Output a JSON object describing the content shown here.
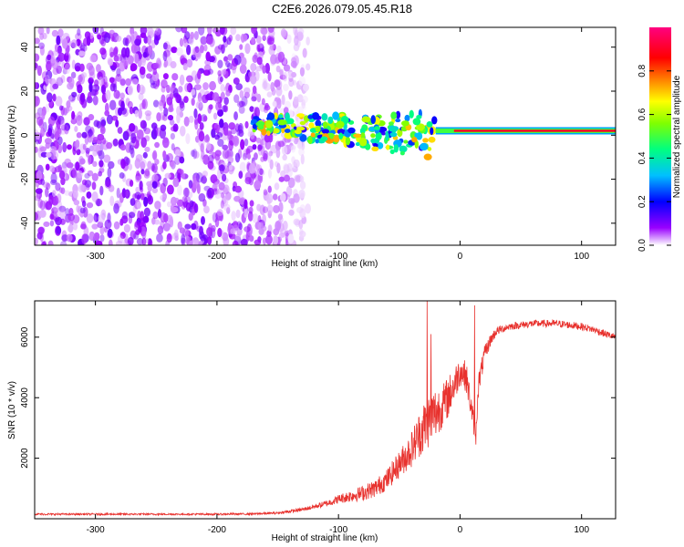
{
  "title": "C2E6.2026.079.05.45.R18",
  "chart_data": [
    {
      "type": "heatmap",
      "xlabel": "Height of straight line (km)",
      "ylabel": "Frequency (Hz)",
      "xlim": [
        -350,
        128
      ],
      "ylim": [
        -50,
        49
      ],
      "x_ticks": [
        -300,
        -200,
        -100,
        0,
        100
      ],
      "x_tick_labels": [
        "-300",
        "-200",
        "-100",
        "0",
        "100"
      ],
      "y_ticks": [
        -40,
        -20,
        0,
        20,
        40
      ],
      "y_tick_labels": [
        "-40",
        "-20",
        "0",
        "20",
        "40"
      ],
      "grid": false,
      "colorbar": {
        "label": "Normalized spectral amplitude",
        "range": [
          0,
          1
        ],
        "ticks": [
          0.0,
          0.2,
          0.4,
          0.6,
          0.8
        ],
        "tick_labels": [
          "0.0",
          "0.2",
          "0.4",
          "0.6",
          "0.8"
        ],
        "colors": [
          "#ffffff",
          "#9900ff",
          "#0000ff",
          "#00c0ff",
          "#00ff80",
          "#80ff00",
          "#ffff00",
          "#ff8000",
          "#ff0000",
          "#ff0080"
        ]
      },
      "features": [
        {
          "x_range": [
            -350,
            -135
          ],
          "y_range": [
            -50,
            49
          ],
          "description": "broadband noise",
          "peak_amplitude": 0.12
        },
        {
          "x_range": [
            -170,
            -20
          ],
          "y_center_start": 5,
          "y_center_end": 0,
          "description": "scattered carrier signal",
          "peak_amplitude": 0.6
        },
        {
          "x_range": [
            -20,
            128
          ],
          "y_center": 2,
          "description": "stable carrier line",
          "peak_amplitude": 1.0
        }
      ]
    },
    {
      "type": "line",
      "xlabel": "Height of straight line (km)",
      "ylabel": "SNR (10 * v/v)",
      "xlim": [
        -350,
        128
      ],
      "ylim": [
        0,
        7200
      ],
      "x_ticks": [
        -300,
        -200,
        -100,
        0,
        100
      ],
      "x_tick_labels": [
        "-300",
        "-200",
        "-100",
        "0",
        "100"
      ],
      "y_ticks": [
        2000,
        4000,
        6000
      ],
      "y_tick_labels": [
        "2000",
        "4000",
        "6000"
      ],
      "grid": false,
      "series_color": "#e8322e",
      "x": [
        -350,
        -300,
        -250,
        -200,
        -170,
        -150,
        -130,
        -110,
        -100,
        -90,
        -80,
        -70,
        -60,
        -50,
        -40,
        -35,
        -30,
        -25,
        -20,
        -15,
        -10,
        -5,
        0,
        5,
        10,
        13,
        15,
        20,
        25,
        30,
        40,
        50,
        60,
        70,
        80,
        90,
        100,
        110,
        120,
        128
      ],
      "values": [
        150,
        150,
        150,
        150,
        160,
        190,
        300,
        500,
        650,
        750,
        850,
        1000,
        1300,
        1800,
        2300,
        2700,
        3000,
        3300,
        3500,
        3700,
        4000,
        4400,
        4900,
        4700,
        3500,
        2700,
        4400,
        5400,
        5900,
        6200,
        6350,
        6400,
        6450,
        6450,
        6450,
        6400,
        6350,
        6250,
        6100,
        6000
      ],
      "noise": [
        30,
        30,
        30,
        30,
        30,
        40,
        60,
        100,
        150,
        200,
        250,
        300,
        350,
        450,
        600,
        700,
        900,
        900,
        900,
        700,
        700,
        600,
        500,
        500,
        400,
        300,
        400,
        300,
        200,
        150,
        120,
        120,
        120,
        120,
        120,
        120,
        120,
        120,
        120,
        120
      ],
      "spikes": [
        {
          "x": -27,
          "y": 7200
        },
        {
          "x": -24,
          "y": 6100
        },
        {
          "x": 12,
          "y": 7050
        }
      ]
    }
  ]
}
